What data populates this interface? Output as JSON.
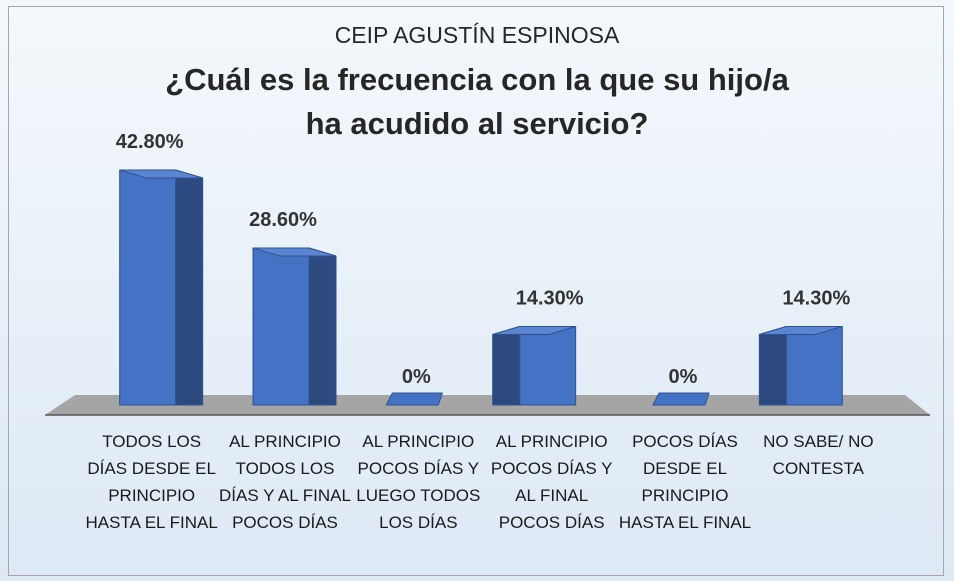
{
  "chart_data": {
    "type": "bar3d",
    "title": "CEIP AGUSTÍN ESPINOSA",
    "subtitle": "¿Cuál es la frecuencia con la que su hijo/a ha acudido al servicio?",
    "categories": [
      "TODOS LOS DÍAS DESDE EL PRINCIPIO HASTA EL FINAL",
      "AL PRINCIPIO TODOS LOS DÍAS Y AL FINAL POCOS DÍAS",
      "AL PRINCIPIO POCOS DÍAS Y LUEGO TODOS LOS DÍAS",
      "AL PRINCIPIO POCOS DÍAS Y AL FINAL POCOS DÍAS",
      "POCOS DÍAS DESDE EL PRINCIPIO HASTA EL FINAL",
      "NO SABE/ NO CONTESTA"
    ],
    "values": [
      42.8,
      28.6,
      0,
      14.3,
      0,
      14.3
    ],
    "value_labels": [
      "42.80%",
      "28.60%",
      "0%",
      "14.30%",
      "0%",
      "14.30%"
    ],
    "color": "#4472c4"
  }
}
